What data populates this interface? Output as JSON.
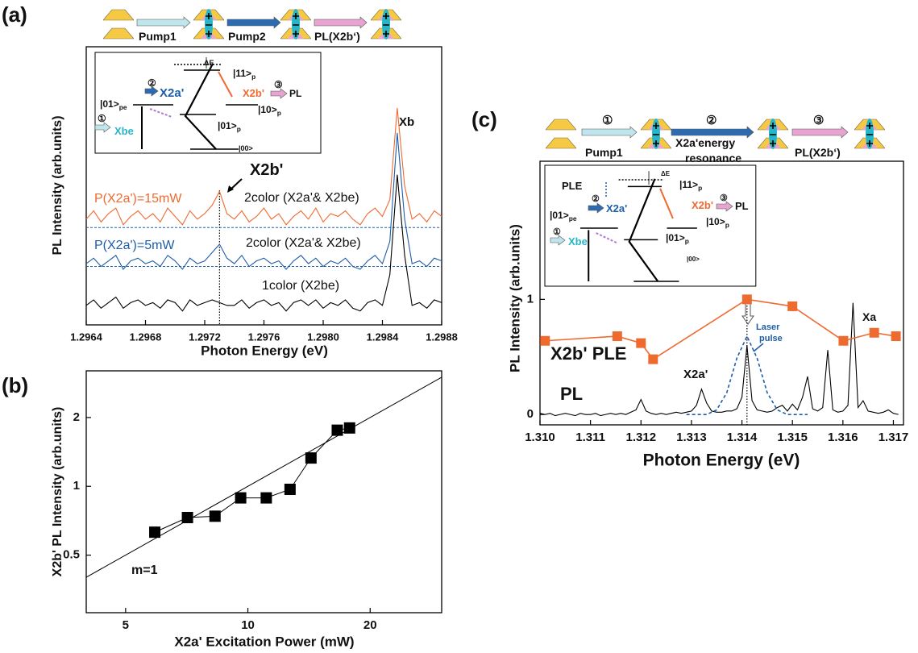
{
  "chart_data": [
    {
      "type": "line",
      "panel_label": "(a)",
      "xlabel": "Photon Energy (eV)",
      "ylabel": "PL Intensity (arb.units)",
      "xlim": [
        1.2964,
        1.2988
      ],
      "ylim": [
        0,
        100
      ],
      "xticks": [
        1.2964,
        1.2968,
        1.2972,
        1.2976,
        {
          "value": 1.298,
          "label": "1.2980"
        },
        1.2984,
        1.2988
      ],
      "x": [
        1.2964,
        1.29645,
        1.2965,
        1.29655,
        1.2966,
        1.29665,
        1.2967,
        1.29675,
        1.2968,
        1.29685,
        1.2969,
        1.29695,
        1.297,
        1.29705,
        1.2971,
        1.29715,
        1.2972,
        1.29725,
        1.2973,
        1.29735,
        1.2974,
        1.29745,
        1.2975,
        1.29755,
        1.2976,
        1.29765,
        1.2977,
        1.29775,
        1.2978,
        1.29785,
        1.2979,
        1.29795,
        1.298,
        1.29805,
        1.2981,
        1.29815,
        1.2982,
        1.29825,
        1.2983,
        1.29835,
        1.2984,
        1.29845,
        1.2985,
        1.29855,
        1.2986,
        1.29865,
        1.2987,
        1.29875,
        1.2988
      ],
      "series": [
        {
          "name": "2color (X2a'& X2be)",
          "color": "#ee6a2f",
          "values": [
            38,
            41,
            37,
            40,
            42,
            36,
            39,
            41,
            38,
            40,
            37,
            42,
            39,
            36,
            41,
            38,
            40,
            43,
            48,
            40,
            38,
            41,
            37,
            39,
            42,
            38,
            40,
            36,
            39,
            41,
            38,
            42,
            37,
            40,
            39,
            41,
            38,
            36,
            40,
            42,
            39,
            45,
            78,
            50,
            38,
            40,
            37,
            41,
            39
          ]
        },
        {
          "name": "2color (X2a'& X2be)",
          "color": "#1d5ea8",
          "values": [
            22,
            24,
            21,
            23,
            25,
            20,
            23,
            24,
            22,
            23,
            21,
            25,
            23,
            20,
            24,
            22,
            23,
            26,
            29,
            24,
            22,
            25,
            21,
            23,
            24,
            22,
            23,
            20,
            23,
            25,
            22,
            24,
            21,
            23,
            22,
            24,
            21,
            20,
            23,
            25,
            22,
            30,
            69,
            38,
            22,
            23,
            21,
            24,
            23
          ]
        },
        {
          "name": "1color (X2be)",
          "color": "#000000",
          "values": [
            7,
            9,
            6,
            8,
            10,
            6,
            8,
            9,
            7,
            8,
            6,
            9,
            8,
            5,
            9,
            7,
            8,
            9,
            8,
            7,
            7,
            9,
            6,
            8,
            9,
            7,
            8,
            5,
            8,
            9,
            7,
            9,
            6,
            8,
            7,
            9,
            6,
            5,
            8,
            9,
            7,
            18,
            54,
            25,
            7,
            8,
            6,
            9,
            8
          ]
        }
      ],
      "baselines": [
        35,
        21
      ],
      "marker_x": 1.2973,
      "annotations": [
        {
          "text": "Pump1"
        },
        {
          "text": "Pump2"
        },
        {
          "text": "PL(X2b‘)"
        },
        {
          "text": "ΔE"
        },
        {
          "text": "|11>",
          "sub": "p"
        },
        {
          "text": "|01>",
          "sub": "pe"
        },
        {
          "text": "②"
        },
        {
          "text": "X2a'",
          "color": "#1d5ea8"
        },
        {
          "text": "X2b'",
          "color": "#ee6a2f"
        },
        {
          "text": "③"
        },
        {
          "text": "PL"
        },
        {
          "text": "|10>",
          "sub": "p"
        },
        {
          "text": "|01>",
          "sub": "p"
        },
        {
          "text": "①"
        },
        {
          "text": "Xbe",
          "color": "#27b6c8"
        },
        {
          "text": "|00>"
        },
        {
          "text": "Xb"
        },
        {
          "text": "X2b'"
        },
        {
          "text": "P(X2a')=15mW",
          "color": "#ee6a2f"
        },
        {
          "text": "P(X2a')=5mW",
          "color": "#1d5ea8"
        }
      ]
    },
    {
      "type": "scatter",
      "panel_label": "(b)",
      "xlabel": "X2a' Excitation Power (mW)",
      "ylabel": "X2b' PL Intensity (arb.units)",
      "log_x": true,
      "log_y": true,
      "xlim": [
        4,
        30
      ],
      "ylim": [
        0.28,
        3.2
      ],
      "xticks": [
        5,
        10,
        20
      ],
      "yticks": [
        0.5,
        1,
        2
      ],
      "x": [
        5.9,
        7.1,
        8.3,
        9.6,
        11.1,
        12.7,
        14.3,
        16.6,
        17.8
      ],
      "values": [
        0.63,
        0.73,
        0.74,
        0.89,
        0.89,
        0.97,
        1.33,
        1.76,
        1.8
      ],
      "color": "#000000",
      "fit_line": {
        "x": [
          4,
          30
        ],
        "y": [
          0.4,
          3.0
        ]
      },
      "annotations": [
        {
          "text": "m=1"
        }
      ]
    },
    {
      "type": "line",
      "panel_label": "(c)",
      "xlabel": "Photon Energy (eV)",
      "ylabel": "PL Intensity (arb.units)",
      "xlim": [
        1.31,
        1.3172
      ],
      "ylim": [
        -0.09,
        2.2
      ],
      "xticks": [
        {
          "value": 1.31,
          "label": "1.310"
        },
        1.311,
        1.312,
        1.313,
        1.314,
        1.315,
        1.316,
        1.317
      ],
      "yticks": [
        0,
        1
      ],
      "series": [
        {
          "name": "PL",
          "color": "#000000",
          "x": [
            1.31,
            1.3101,
            1.3102,
            1.3103,
            1.3104,
            1.3105,
            1.3106,
            1.3107,
            1.3108,
            1.3109,
            1.311,
            1.3111,
            1.3112,
            1.3113,
            1.3114,
            1.3115,
            1.3116,
            1.3117,
            1.3118,
            1.3119,
            1.312,
            1.3121,
            1.3122,
            1.3123,
            1.3124,
            1.3125,
            1.3126,
            1.3127,
            1.3128,
            1.3129,
            1.313,
            1.3131,
            1.3132,
            1.3133,
            1.3134,
            1.3135,
            1.3136,
            1.3137,
            1.3138,
            1.3139,
            1.314,
            1.3141,
            1.3142,
            1.3143,
            1.3144,
            1.3145,
            1.3146,
            1.3147,
            1.3148,
            1.3149,
            1.315,
            1.3151,
            1.3152,
            1.3153,
            1.3154,
            1.3155,
            1.3156,
            1.3157,
            1.3158,
            1.3159,
            1.316,
            1.3161,
            1.3162,
            1.3163,
            1.3164,
            1.3165,
            1.3166,
            1.3167,
            1.3168,
            1.3169,
            1.317,
            1.3171
          ],
          "values": [
            0.01,
            0,
            0.01,
            -0.01,
            0,
            0.01,
            0,
            -0.01,
            0.01,
            0,
            0,
            0.01,
            -0.01,
            0,
            0.01,
            0,
            0.01,
            0,
            0.02,
            0.04,
            0.13,
            0.03,
            0.01,
            0,
            0.01,
            0,
            0.01,
            0.02,
            0.01,
            0.02,
            0.03,
            0.08,
            0.22,
            0.1,
            0.03,
            0.02,
            0.02,
            0.03,
            0.03,
            0.05,
            0.15,
            0.6,
            0.12,
            0.04,
            0.03,
            0.02,
            0.03,
            0.06,
            0.08,
            0.03,
            0.09,
            0.04,
            0.15,
            0.33,
            0.05,
            0.03,
            0.06,
            0.56,
            0.04,
            0.02,
            0.03,
            0.08,
            0.97,
            0.06,
            0.12,
            0.03,
            0.02,
            0.01,
            0.02,
            0.04,
            0.01,
            0
          ]
        },
        {
          "color": "#1d5ea8",
          "dashed": true,
          "x": [
            1.3129,
            1.3131,
            1.3133,
            1.3135,
            1.3137,
            1.3139,
            1.3141,
            1.3143,
            1.3145,
            1.3147,
            1.3149,
            1.3151,
            1.3153
          ],
          "values": [
            0,
            0,
            0,
            0.04,
            0.19,
            0.49,
            0.68,
            0.49,
            0.19,
            0.04,
            0,
            0,
            0
          ]
        },
        {
          "name": "X2b'  PLE",
          "color": "#ee6a2f",
          "markers": true,
          "x": [
            1.3101,
            1.31153,
            1.312,
            1.31224,
            1.3141,
            1.315,
            1.31601,
            1.31662,
            1.31705
          ],
          "values": [
            0.64,
            0.68,
            0.62,
            0.48,
            1.0,
            0.94,
            0.64,
            0.71,
            0.68
          ]
        }
      ],
      "marker_x": 1.3141,
      "annotations": [
        {
          "text": "①"
        },
        {
          "text": "Pump1"
        },
        {
          "text": "②"
        },
        {
          "text": "X2a'energy"
        },
        {
          "text": "resonance"
        },
        {
          "text": "③"
        },
        {
          "text": "PL(X2b‘)"
        },
        {
          "text": "PLE"
        },
        {
          "text": "ΔE"
        },
        {
          "text": "|11>",
          "sub": "p"
        },
        {
          "text": "|01>",
          "sub": "pe"
        },
        {
          "text": "②"
        },
        {
          "text": "X2a'",
          "color": "#1d5ea8"
        },
        {
          "text": "X2b'",
          "color": "#ee6a2f"
        },
        {
          "text": "③"
        },
        {
          "text": "PL"
        },
        {
          "text": "|10>",
          "sub": "p"
        },
        {
          "text": "|01>",
          "sub": "p"
        },
        {
          "text": "①"
        },
        {
          "text": "Xbe",
          "color": "#27b6c8"
        },
        {
          "text": "|00>"
        },
        {
          "text": "Xa"
        },
        {
          "text": "X2a'"
        },
        {
          "text": "Laser",
          "color": "#1d5ea8"
        },
        {
          "text": "pulse",
          "color": "#1d5ea8"
        }
      ]
    }
  ]
}
